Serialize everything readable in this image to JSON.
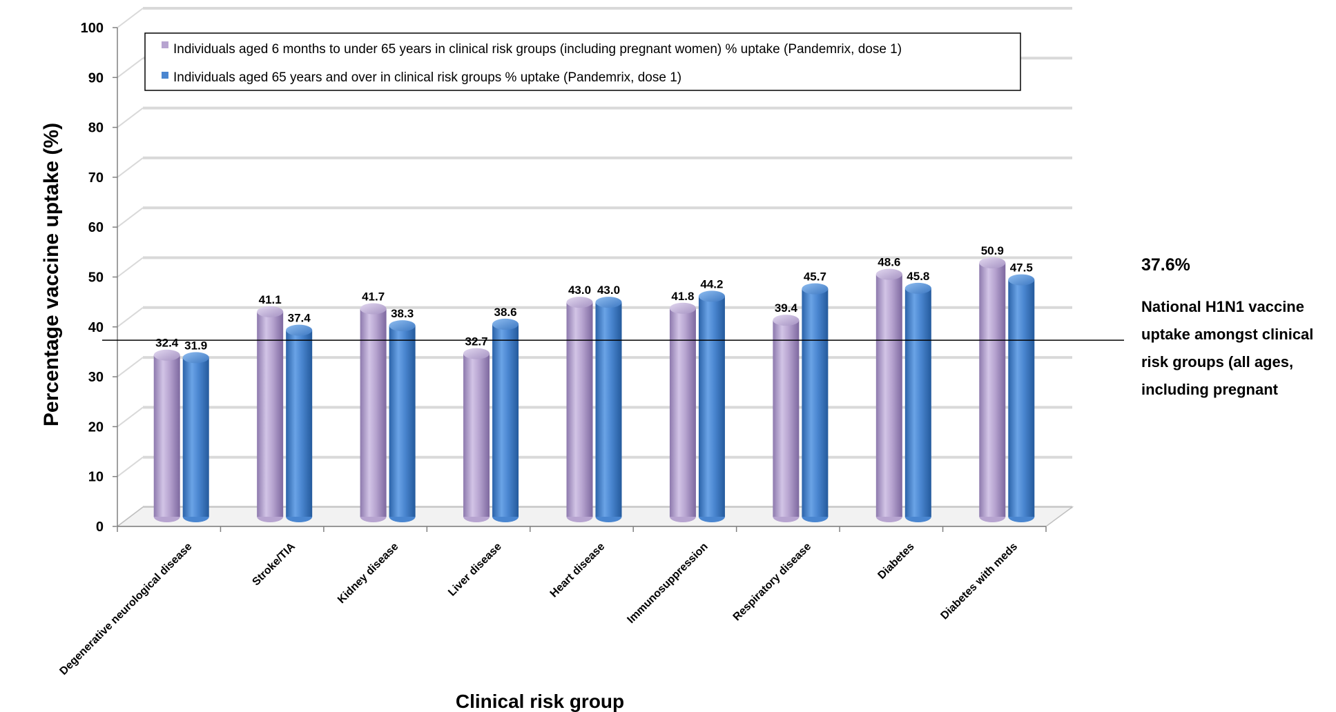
{
  "chart_data": {
    "type": "bar",
    "ylabel": "Percentage vaccine uptake (%)",
    "xlabel": "Clinical risk group",
    "ylim": [
      0,
      100
    ],
    "yticks": [
      0,
      10,
      20,
      30,
      40,
      50,
      60,
      70,
      80,
      90,
      100
    ],
    "grid": true,
    "legend_position": "top-left",
    "categories": [
      "Degenerative neurological disease",
      "Stroke/TIA",
      "Kidney disease",
      "Liver disease",
      "Heart disease",
      "Immunosuppression",
      "Respiratory disease",
      "Diabetes",
      "Diabetes with meds"
    ],
    "series": [
      {
        "name": "Individuals aged 6 months to under 65 years in clinical risk groups (including pregnant women) % uptake (Pandemrix, dose 1)",
        "color": "#b7a4d0",
        "values": [
          32.4,
          41.1,
          41.7,
          32.7,
          43.0,
          41.8,
          39.4,
          48.6,
          50.9
        ],
        "labels": [
          "32.4",
          "41.1",
          "41.7",
          "32.7",
          "43.0",
          "41.8",
          "39.4",
          "48.6",
          "50.9"
        ]
      },
      {
        "name": "Individuals aged 65 years and over in clinical risk groups % uptake (Pandemrix, dose 1)",
        "color": "#4a86d0",
        "values": [
          31.9,
          37.4,
          38.3,
          38.6,
          43.0,
          44.2,
          45.7,
          45.8,
          47.5
        ],
        "labels": [
          "31.9",
          "37.4",
          "38.3",
          "38.6",
          "43.0",
          "44.2",
          "45.7",
          "45.8",
          "47.5"
        ]
      }
    ],
    "reference_line": {
      "value": 37.6,
      "label": "37.6%",
      "note_lines": [
        "National H1N1 vaccine",
        "uptake amongst clinical",
        "risk groups (all ages,",
        "including pregnant"
      ]
    }
  }
}
